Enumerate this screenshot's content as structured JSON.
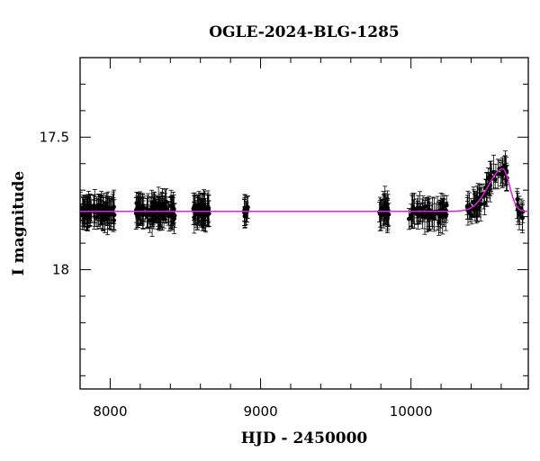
{
  "chart_data": {
    "type": "scatter",
    "title": "OGLE-2024-BLG-1285",
    "xlabel": "HJD - 2450000",
    "ylabel": "I magnitude",
    "xlim": [
      7800,
      10780
    ],
    "ylim": [
      18.45,
      17.2
    ],
    "y_inverted": true,
    "grid": false,
    "legend": "none",
    "x_ticks": [
      8000,
      9000,
      10000
    ],
    "y_ticks": [
      17.5,
      18
    ],
    "x_tick_labels": [
      "8000",
      "9000",
      "10000"
    ],
    "y_tick_labels": [
      "17.5",
      "18"
    ],
    "colors": {
      "points": "#000000",
      "model": "#e020e0"
    },
    "model": {
      "baseline_mag": 17.78,
      "peak_time": 10610,
      "peak_mag": 17.62,
      "rise_time_scale": 95,
      "fall_time_scale": 45
    },
    "observation_seasons": [
      {
        "start": 7800,
        "end": 8030,
        "count": 90
      },
      {
        "start": 8170,
        "end": 8430,
        "count": 95
      },
      {
        "start": 8550,
        "end": 8660,
        "count": 50
      },
      {
        "start": 8890,
        "end": 8920,
        "count": 10
      },
      {
        "start": 9790,
        "end": 9860,
        "count": 25
      },
      {
        "start": 9980,
        "end": 10240,
        "count": 55
      },
      {
        "start": 10370,
        "end": 10650,
        "count": 60
      },
      {
        "start": 10700,
        "end": 10780,
        "count": 10
      }
    ]
  }
}
